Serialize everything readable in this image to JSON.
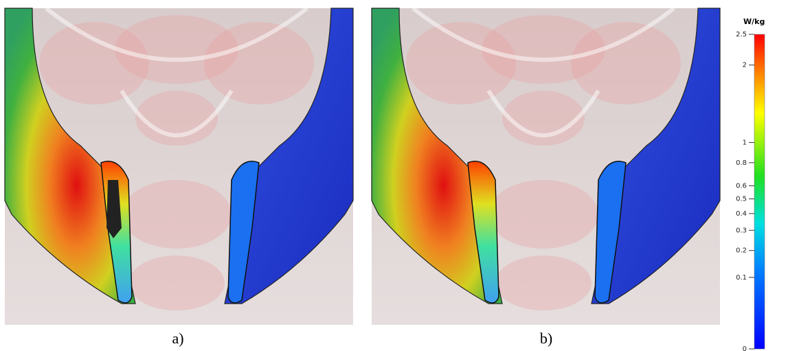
{
  "panels": [
    {
      "label": "a)"
    },
    {
      "label": "b)"
    }
  ],
  "colorbar": {
    "unit": "W/kg",
    "ticks": [
      2.5,
      2,
      1,
      0.8,
      0.6,
      0.5,
      0.4,
      0.3,
      0.2,
      0.1,
      0
    ]
  }
}
